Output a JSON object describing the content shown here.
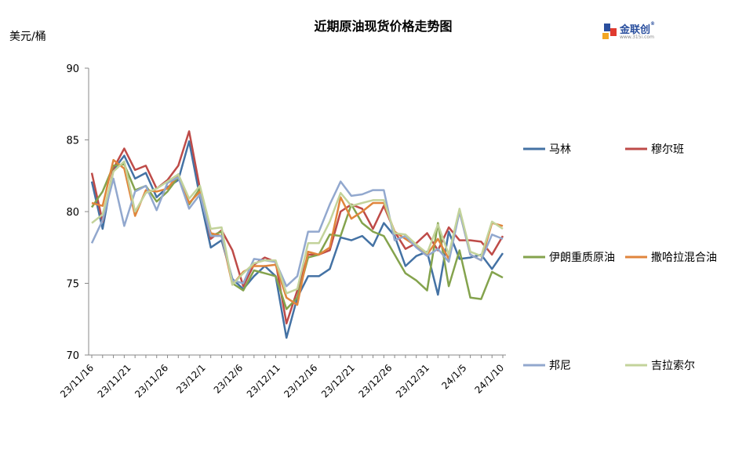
{
  "chart_data": {
    "type": "line",
    "title": "近期原油现货价格走势图",
    "ylabel": "美元/桶",
    "xlabel": "",
    "ylim": [
      70,
      90
    ],
    "yticks": [
      70,
      75,
      80,
      85,
      90
    ],
    "grid": false,
    "legend_position": "right",
    "x": [
      "23/11/16",
      "23/11/17",
      "23/11/20",
      "23/11/21",
      "23/11/22",
      "23/11/23",
      "23/11/24",
      "23/11/27",
      "23/11/28",
      "23/11/29",
      "23/11/30",
      "23/12/1",
      "23/12/4",
      "23/12/5",
      "23/12/6",
      "23/12/7",
      "23/12/8",
      "23/12/11",
      "23/12/12",
      "23/12/13",
      "23/12/14",
      "23/12/15",
      "23/12/18",
      "23/12/19",
      "23/12/20",
      "23/12/21",
      "23/12/22",
      "23/12/26",
      "23/12/27",
      "23/12/28",
      "23/12/29",
      "24/1/2",
      "24/1/3",
      "24/1/4",
      "24/1/5",
      "24/1/8",
      "24/1/9",
      "24/1/10",
      "24/1/11"
    ],
    "x_tick_labels": [
      "23/11/16",
      "23/11/21",
      "23/11/26",
      "23/12/1",
      "23/12/6",
      "23/12/11",
      "23/12/16",
      "23/12/21",
      "23/12/26",
      "23/12/31",
      "24/1/5",
      "24/1/10"
    ],
    "series": [
      {
        "name": "马林",
        "color": "#4472a4",
        "values": [
          82.1,
          78.8,
          82.9,
          83.9,
          82.3,
          82.7,
          81.0,
          81.7,
          82.2,
          84.9,
          81.0,
          77.5,
          78.0,
          75.3,
          74.6,
          75.5,
          76.2,
          75.5,
          71.2,
          74.0,
          75.5,
          75.5,
          76.0,
          78.2,
          78.0,
          78.3,
          77.6,
          79.2,
          78.3,
          76.2,
          76.9,
          77.2,
          74.2,
          78.6,
          76.7,
          76.8,
          77.0,
          76.0,
          77.1
        ]
      },
      {
        "name": "穆尔班",
        "color": "#be4b48",
        "values": [
          82.7,
          79.3,
          83.0,
          84.4,
          82.9,
          83.2,
          81.6,
          82.2,
          83.2,
          85.6,
          81.6,
          78.1,
          78.7,
          77.3,
          74.8,
          76.3,
          76.8,
          76.5,
          72.2,
          74.5,
          77.0,
          77.0,
          77.3,
          80.0,
          80.5,
          80.2,
          78.8,
          80.4,
          78.6,
          77.4,
          77.8,
          78.5,
          77.3,
          78.9,
          78.0,
          78.0,
          77.9,
          77.0,
          78.3
        ]
      },
      {
        "name": "伊朗重质原油",
        "color": "#84a34d",
        "values": [
          80.3,
          81.4,
          83.2,
          83.3,
          81.5,
          81.8,
          80.7,
          81.4,
          82.4,
          80.5,
          81.6,
          78.3,
          78.6,
          75.0,
          74.5,
          75.9,
          75.7,
          75.5,
          73.2,
          74.0,
          76.8,
          77.0,
          78.4,
          78.3,
          80.5,
          79.2,
          78.6,
          78.3,
          77.0,
          75.7,
          75.2,
          74.5,
          79.2,
          74.8,
          77.3,
          74.0,
          73.9,
          75.8,
          75.4
        ]
      },
      {
        "name": "撒哈拉混合油",
        "color": "#e0853c",
        "values": [
          80.6,
          80.4,
          83.6,
          83.0,
          79.7,
          81.5,
          81.4,
          81.6,
          82.6,
          80.6,
          81.4,
          78.5,
          78.3,
          74.9,
          75.8,
          76.2,
          76.2,
          76.3,
          74.0,
          73.5,
          77.2,
          77.0,
          77.5,
          81.0,
          79.5,
          80.0,
          80.6,
          80.6,
          78.6,
          78.1,
          77.6,
          77.0,
          78.1,
          76.7,
          80.0,
          77.0,
          76.6,
          79.2,
          79.0
        ]
      },
      {
        "name": "邦尼",
        "color": "#92a8ce",
        "values": [
          77.8,
          79.4,
          82.3,
          79.0,
          81.4,
          81.8,
          80.1,
          82.0,
          82.4,
          80.2,
          81.2,
          78.3,
          78.3,
          75.2,
          75.0,
          76.7,
          76.6,
          76.5,
          74.8,
          75.5,
          78.6,
          78.6,
          80.5,
          82.1,
          81.1,
          81.2,
          81.5,
          81.5,
          78.0,
          78.3,
          77.5,
          76.9,
          77.4,
          76.5,
          80.0,
          77.0,
          76.6,
          78.4,
          78.1
        ]
      },
      {
        "name": "吉拉索尔",
        "color": "#c3d39b",
        "values": [
          79.2,
          79.8,
          82.8,
          83.5,
          80.0,
          81.3,
          81.6,
          82.1,
          82.6,
          80.9,
          81.8,
          78.8,
          78.9,
          74.9,
          75.7,
          76.4,
          76.6,
          76.6,
          74.3,
          74.6,
          77.8,
          77.8,
          79.3,
          81.3,
          80.4,
          80.6,
          80.8,
          80.8,
          78.5,
          78.4,
          77.7,
          77.1,
          79.1,
          77.0,
          80.2,
          77.2,
          76.9,
          79.3,
          78.8
        ]
      }
    ]
  }
}
